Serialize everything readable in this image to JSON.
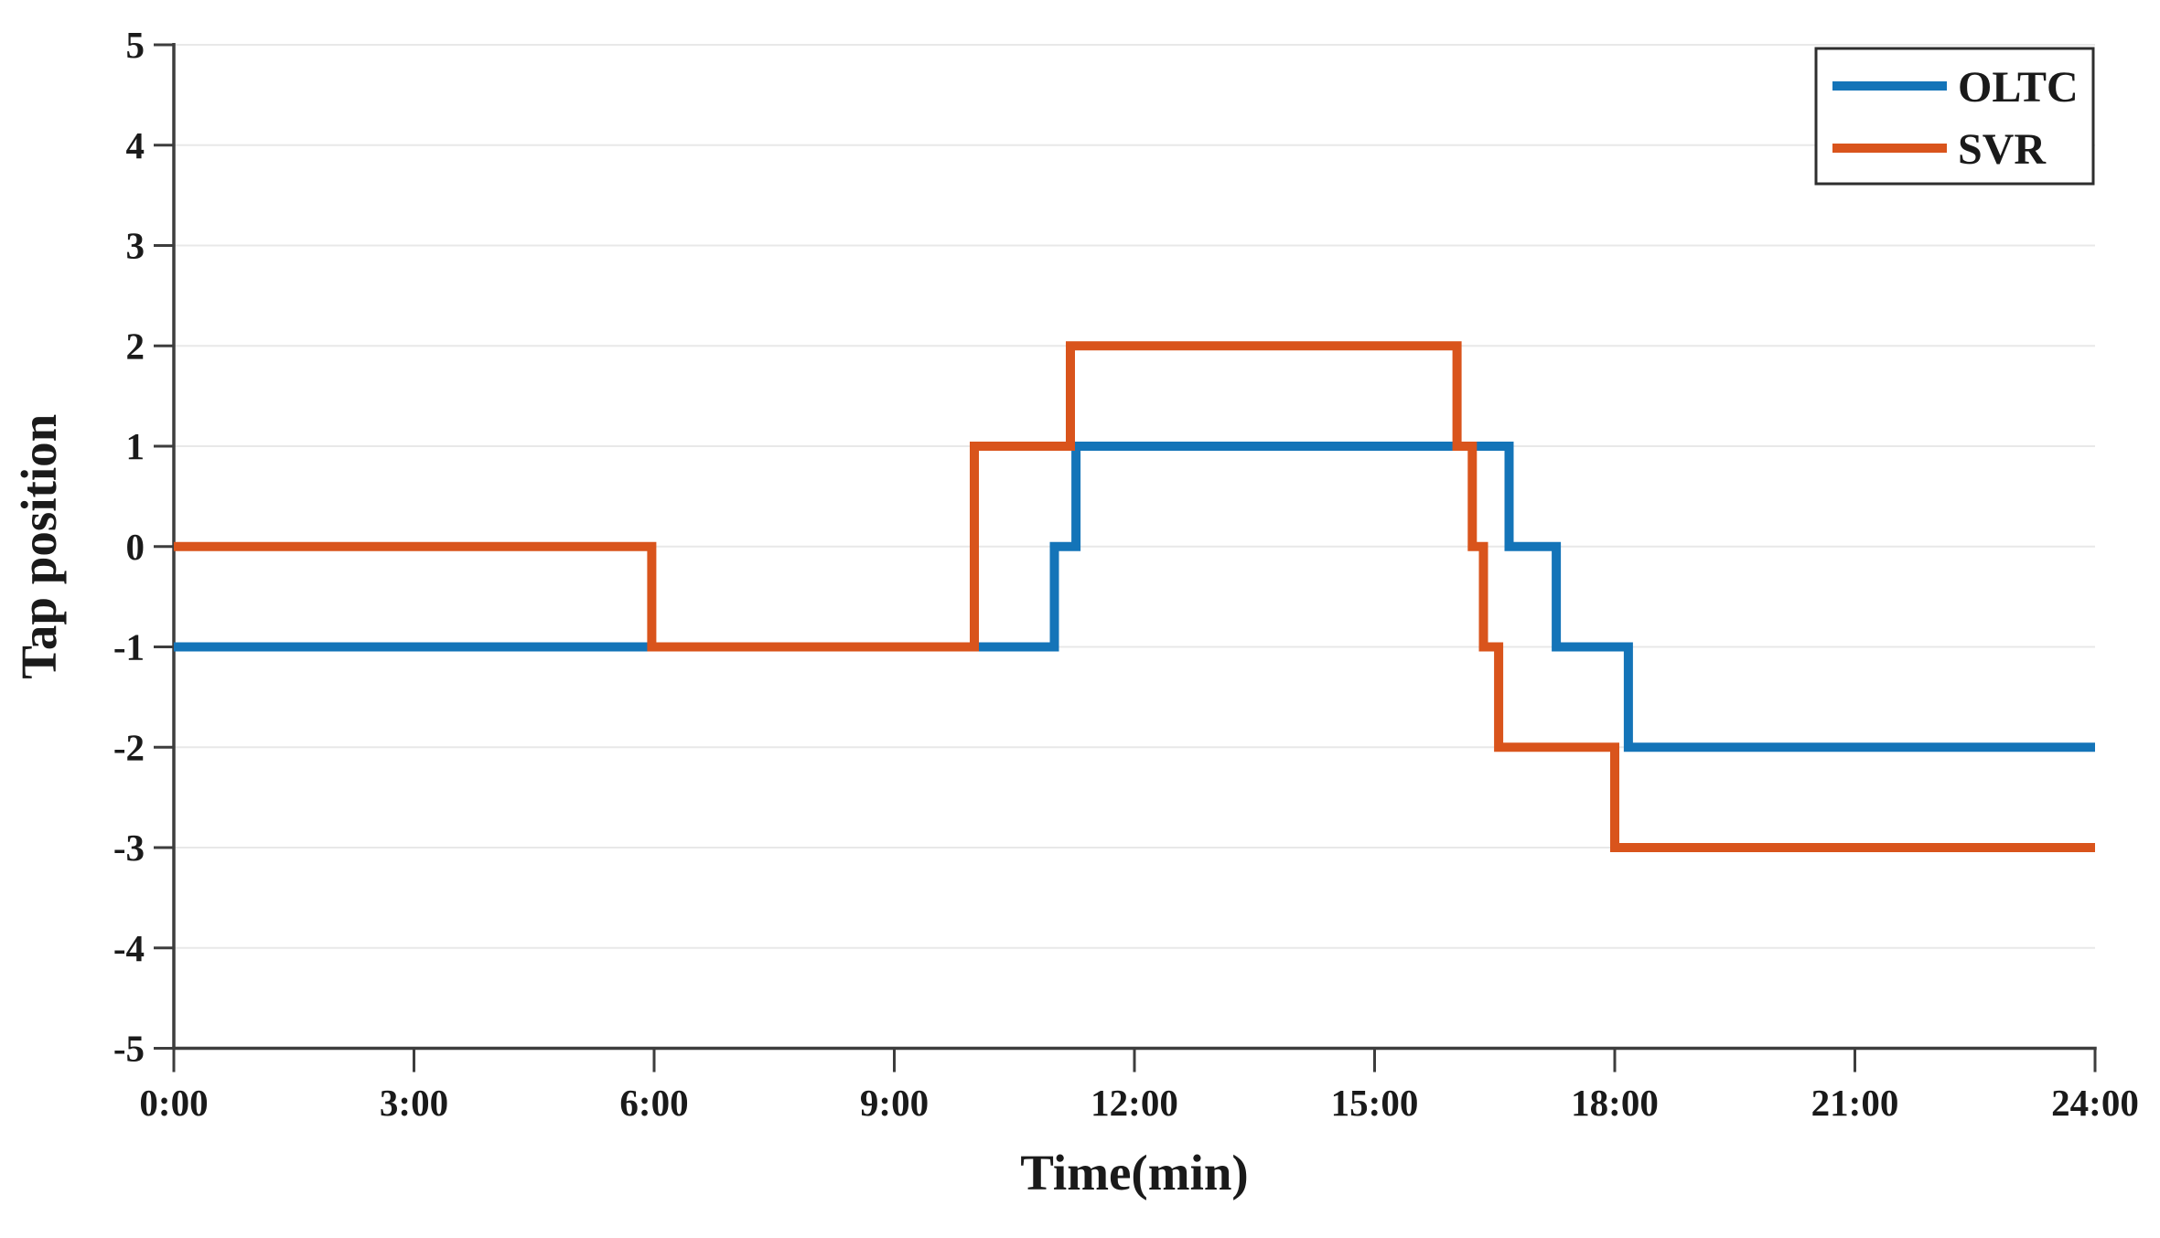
{
  "chart_data": {
    "type": "line",
    "subtype": "step",
    "title": "",
    "xlabel": "Time(min)",
    "ylabel": "Tap position",
    "xlim": [
      0,
      24
    ],
    "ylim": [
      -5,
      5
    ],
    "grid": "horizontal",
    "grid_color": "#e8e8e8",
    "axis_color": "#3d3d3d",
    "text_color": "#1a1a1a",
    "legend_position": "top-right",
    "x_ticks": [
      0,
      3,
      6,
      9,
      12,
      15,
      18,
      21,
      24
    ],
    "x_tick_labels": [
      "0:00",
      "3:00",
      "6:00",
      "9:00",
      "12:00",
      "15:00",
      "18:00",
      "21:00",
      "24:00"
    ],
    "y_ticks": [
      5,
      4,
      3,
      2,
      1,
      0,
      -1,
      -2,
      -3,
      -4,
      -5
    ],
    "y_tick_labels": [
      "5",
      "4",
      "3",
      "2",
      "1",
      "0",
      "-1",
      "-2",
      "-3",
      "-4",
      "-5"
    ],
    "series": [
      {
        "name": "OLTC",
        "color": "#1474b8",
        "points": [
          [
            0,
            -1
          ],
          [
            11.0,
            -1
          ],
          [
            11.0,
            0
          ],
          [
            11.27,
            0
          ],
          [
            11.27,
            1
          ],
          [
            16.68,
            1
          ],
          [
            16.68,
            0
          ],
          [
            17.27,
            0
          ],
          [
            17.27,
            -1
          ],
          [
            18.17,
            -1
          ],
          [
            18.17,
            -2
          ],
          [
            24,
            -2
          ]
        ]
      },
      {
        "name": "SVR",
        "color": "#d9541c",
        "points": [
          [
            0,
            0
          ],
          [
            5.97,
            0
          ],
          [
            5.97,
            -1
          ],
          [
            10.0,
            -1
          ],
          [
            10.0,
            1
          ],
          [
            11.2,
            1
          ],
          [
            11.2,
            2
          ],
          [
            16.03,
            2
          ],
          [
            16.03,
            1
          ],
          [
            16.22,
            1
          ],
          [
            16.22,
            0
          ],
          [
            16.36,
            0
          ],
          [
            16.36,
            -1
          ],
          [
            16.55,
            -1
          ],
          [
            16.55,
            -2
          ],
          [
            18.0,
            -2
          ],
          [
            18.0,
            -3
          ],
          [
            24,
            -3
          ]
        ]
      }
    ]
  },
  "legend": {
    "border_color": "#2e2e2e",
    "items": [
      {
        "label": "OLTC"
      },
      {
        "label": "SVR"
      }
    ]
  }
}
